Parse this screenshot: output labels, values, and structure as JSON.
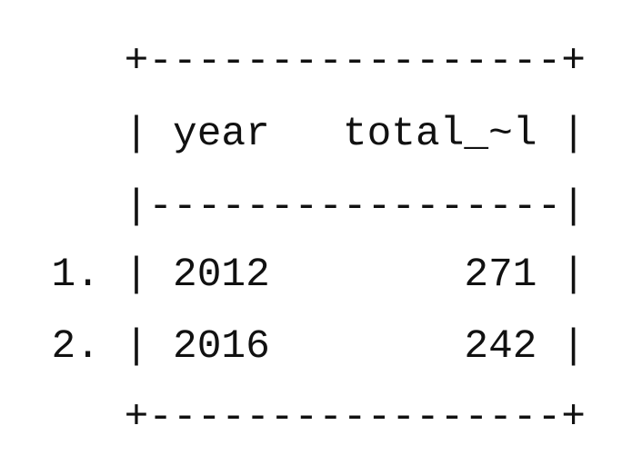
{
  "table": {
    "top_border": "+-----------------+",
    "header_rule": "|-----------------|",
    "bottom_border": "+-----------------+",
    "edge": "|",
    "columns": [
      "year",
      "total_~l"
    ],
    "rows": [
      {
        "label": "1.",
        "cells": [
          2012,
          271
        ]
      },
      {
        "label": "2.",
        "cells": [
          2016,
          242
        ]
      }
    ]
  }
}
